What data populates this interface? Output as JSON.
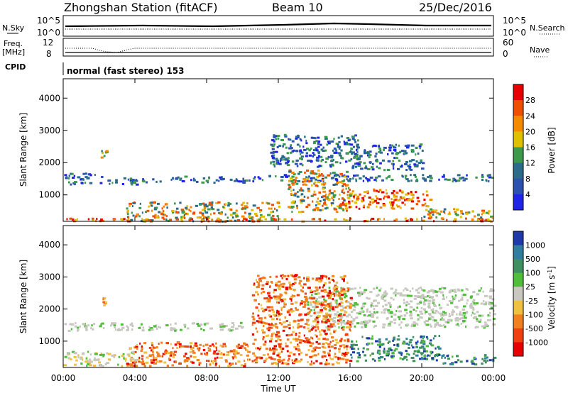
{
  "header": {
    "station": "Zhongshan Station (fitACF)",
    "beam": "Beam 10",
    "date": "25/Dec/2016"
  },
  "top_panels": {
    "nsky_label": "N.Sky",
    "nsky_ticks": [
      "10^5",
      "10^0"
    ],
    "nsearch_label": "N.Search",
    "nsearch_ticks": [
      "10^5",
      "10^0"
    ],
    "freq_label_1": "Freq.",
    "freq_label_2": "[MHz]",
    "freq_ticks": [
      "12",
      "8"
    ],
    "nave_label": "Nave",
    "nave_ticks": [
      "60",
      "0"
    ],
    "cpid_label": "CPID",
    "cpid_text": "normal (fast stereo) 153"
  },
  "chart_data": [
    {
      "type": "heatmap",
      "name": "power",
      "xlabel": "Time UT",
      "ylabel": "Slant Range [km]",
      "xlim_hours": [
        0,
        24
      ],
      "ylim_km": [
        180,
        4600
      ],
      "y_ticks": [
        "4000",
        "3000",
        "2000",
        "1000"
      ],
      "colorbar_label": "Power [dB]",
      "colorbar_ticks": [
        "28",
        "24",
        "20",
        "16",
        "12",
        "8",
        "4"
      ],
      "colorbar_colors": [
        "#e80000",
        "#f04e00",
        "#f48a00",
        "#e0c000",
        "#3c9a4a",
        "#2a6c8a",
        "#2c52b0",
        "#1f24e8"
      ],
      "grid": false,
      "bands": [
        {
          "t0": 0.0,
          "t1": 2.2,
          "r0": 1350,
          "r1": 1700,
          "level": "low"
        },
        {
          "t0": 2.3,
          "t1": 5.5,
          "r0": 1350,
          "r1": 1550,
          "level": "low"
        },
        {
          "t0": 6.0,
          "t1": 10.5,
          "r0": 1400,
          "r1": 1600,
          "level": "low"
        },
        {
          "t0": 10.5,
          "t1": 24.0,
          "r0": 1450,
          "r1": 1650,
          "level": "low"
        },
        {
          "t0": 0.0,
          "t1": 24.0,
          "r0": 200,
          "r1": 300,
          "level": "high"
        },
        {
          "t0": 3.5,
          "t1": 12.0,
          "r0": 200,
          "r1": 800,
          "level": "mid"
        },
        {
          "t0": 11.5,
          "t1": 16.5,
          "r0": 1900,
          "r1": 2900,
          "level": "low"
        },
        {
          "t0": 12.5,
          "t1": 16.0,
          "r0": 500,
          "r1": 1800,
          "level": "mid"
        },
        {
          "t0": 15.5,
          "t1": 20.5,
          "r0": 600,
          "r1": 1200,
          "level": "high"
        },
        {
          "t0": 16.0,
          "t1": 20.0,
          "r0": 1800,
          "r1": 2600,
          "level": "low"
        },
        {
          "t0": 20.0,
          "t1": 24.0,
          "r0": 300,
          "r1": 600,
          "level": "mid"
        },
        {
          "t0": 2.0,
          "t1": 2.5,
          "r0": 2150,
          "r1": 2400,
          "level": "mid"
        }
      ]
    },
    {
      "type": "heatmap",
      "name": "velocity",
      "xlabel": "Time UT",
      "ylabel": "Slant Range [km]",
      "xlim_hours": [
        0,
        24
      ],
      "ylim_km": [
        180,
        4600
      ],
      "x_ticks": [
        "00:00",
        "04:00",
        "08:00",
        "12:00",
        "16:00",
        "20:00",
        "00:00"
      ],
      "y_ticks": [
        "4000",
        "3000",
        "2000",
        "1000"
      ],
      "colorbar_label": "Velocity [m s^-1]",
      "colorbar_ticks": [
        "1000",
        "500",
        "100",
        "25",
        "-25",
        "-100",
        "-500",
        "-1000"
      ],
      "colorbar_colors": [
        "#1e3aa8",
        "#2f7ea0",
        "#3f9060",
        "#4fbf3a",
        "#c8c8c0",
        "#f0c040",
        "#f08020",
        "#f04010",
        "#e80000"
      ],
      "grid": false,
      "bands": [
        {
          "t0": 0.0,
          "t1": 10.0,
          "r0": 1350,
          "r1": 1600,
          "level": "zero"
        },
        {
          "t0": 13.5,
          "t1": 24.0,
          "r0": 1450,
          "r1": 2700,
          "level": "zero"
        },
        {
          "t0": 3.5,
          "t1": 10.5,
          "r0": 250,
          "r1": 1000,
          "level": "neg"
        },
        {
          "t0": 10.5,
          "t1": 16.0,
          "r0": 300,
          "r1": 3100,
          "level": "neg"
        },
        {
          "t0": 16.0,
          "t1": 21.0,
          "r0": 400,
          "r1": 1200,
          "level": "pos"
        },
        {
          "t0": 21.0,
          "t1": 24.0,
          "r0": 300,
          "r1": 600,
          "level": "pos"
        },
        {
          "t0": 0.0,
          "t1": 4.0,
          "r0": 250,
          "r1": 700,
          "level": "weak"
        },
        {
          "t0": 2.0,
          "t1": 2.6,
          "r0": 2100,
          "r1": 2400,
          "level": "neg"
        }
      ]
    }
  ]
}
